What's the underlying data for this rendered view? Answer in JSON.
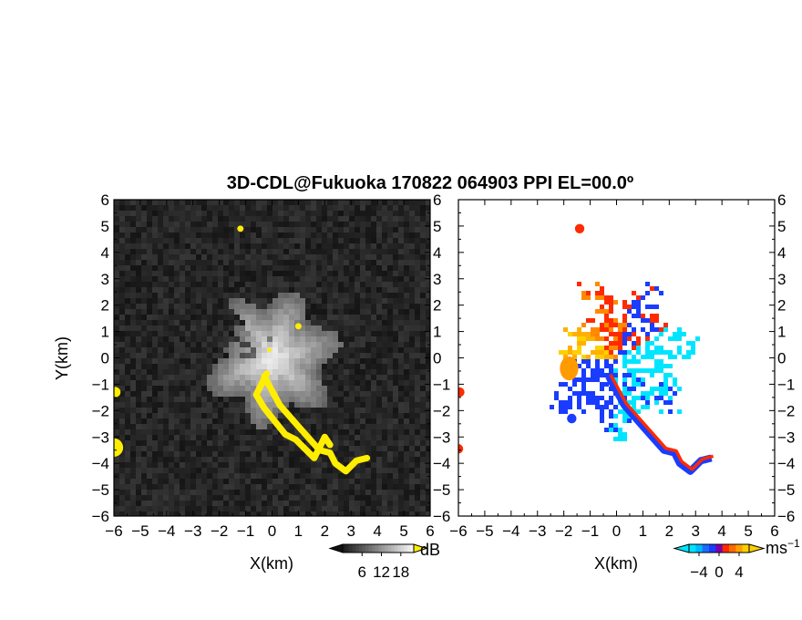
{
  "title": "3D-CDL@Fukuoka 170822 064903 PPI EL=00.0º",
  "chart_data": [
    {
      "type": "heatmap",
      "name": "intensity",
      "xlabel": "X(km)",
      "ylabel": "Y(km)",
      "xlim": [
        -6,
        6
      ],
      "ylim": [
        -6,
        6
      ],
      "x_ticks": [
        "−6",
        "−5",
        "−4",
        "−3",
        "−2",
        "−1",
        "0",
        "1",
        "2",
        "3",
        "4",
        "5",
        "6"
      ],
      "y_ticks": [
        "6",
        "5",
        "4",
        "3",
        "2",
        "1",
        "0",
        "−1",
        "−2",
        "−3",
        "−4",
        "−5",
        "−6"
      ],
      "colorbar": {
        "unit": "dB",
        "ticks": [
          "6",
          "12",
          "18"
        ],
        "range": [
          0,
          22
        ]
      },
      "highlight_color": "#ffee00",
      "background_color": "#1a1a1a",
      "echo_color": "#dddddd"
    },
    {
      "type": "heatmap",
      "name": "velocity",
      "xlabel": "X(km)",
      "xlim": [
        -6,
        6
      ],
      "ylim": [
        -6,
        6
      ],
      "x_ticks": [
        "−6",
        "−5",
        "−4",
        "−3",
        "−2",
        "−1",
        "0",
        "1",
        "2",
        "3",
        "4",
        "5",
        "6"
      ],
      "y_ticks": [
        "6",
        "5",
        "4",
        "3",
        "2",
        "1",
        "0",
        "−1",
        "−2",
        "−3",
        "−4",
        "−5",
        "−6"
      ],
      "colorbar": {
        "unit": "ms",
        "unit_superscript": "−1",
        "ticks": [
          "−4",
          "0",
          "4"
        ],
        "range": [
          -6,
          6
        ]
      },
      "colors": {
        "approaching_strong": "#00e5ff",
        "approaching": "#1a3cff",
        "receding": "#ff2a00",
        "receding_weak": "#ffd000"
      }
    }
  ]
}
